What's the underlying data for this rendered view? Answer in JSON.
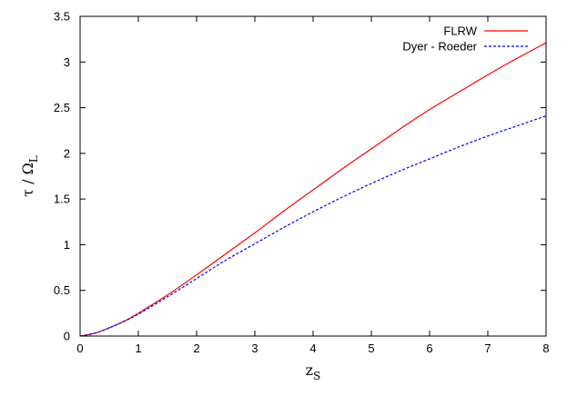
{
  "chart_data": {
    "type": "line",
    "xlabel_main": "z",
    "xlabel_sub": "S",
    "ylabel_main": "τ / Ω",
    "ylabel_sub": "L",
    "xlim": [
      0,
      8
    ],
    "ylim": [
      0,
      3.5
    ],
    "xticks": [
      0,
      1,
      2,
      3,
      4,
      5,
      6,
      7,
      8
    ],
    "xtick_labels": [
      "0",
      "1",
      "2",
      "3",
      "4",
      "5",
      "6",
      "7",
      "8"
    ],
    "yticks": [
      0,
      0.5,
      1,
      1.5,
      2,
      2.5,
      3,
      3.5
    ],
    "ytick_labels": [
      "0",
      "0.5",
      "1",
      "1.5",
      "2",
      "2.5",
      "3",
      "3.5"
    ],
    "grid": false,
    "legend_position": "top-right",
    "series": [
      {
        "name": "FLRW",
        "color": "#ff0000",
        "dash": "solid",
        "x": [
          0,
          0.25,
          0.5,
          0.75,
          1,
          1.5,
          2,
          2.5,
          3,
          3.5,
          4,
          4.5,
          5,
          5.5,
          6,
          6.5,
          7,
          7.5,
          8
        ],
        "y": [
          0,
          0.03,
          0.09,
          0.16,
          0.25,
          0.45,
          0.67,
          0.9,
          1.13,
          1.37,
          1.6,
          1.83,
          2.05,
          2.27,
          2.48,
          2.67,
          2.86,
          3.04,
          3.21
        ]
      },
      {
        "name": "Dyer - Roeder",
        "color": "#0000ff",
        "dash": "dashed",
        "x": [
          0,
          0.25,
          0.5,
          0.75,
          1,
          1.5,
          2,
          2.5,
          3,
          3.5,
          4,
          4.5,
          5,
          5.5,
          6,
          6.5,
          7,
          7.5,
          8
        ],
        "y": [
          0,
          0.03,
          0.09,
          0.16,
          0.24,
          0.43,
          0.63,
          0.83,
          1.01,
          1.19,
          1.36,
          1.52,
          1.67,
          1.81,
          1.94,
          2.07,
          2.19,
          2.3,
          2.41
        ]
      }
    ]
  }
}
